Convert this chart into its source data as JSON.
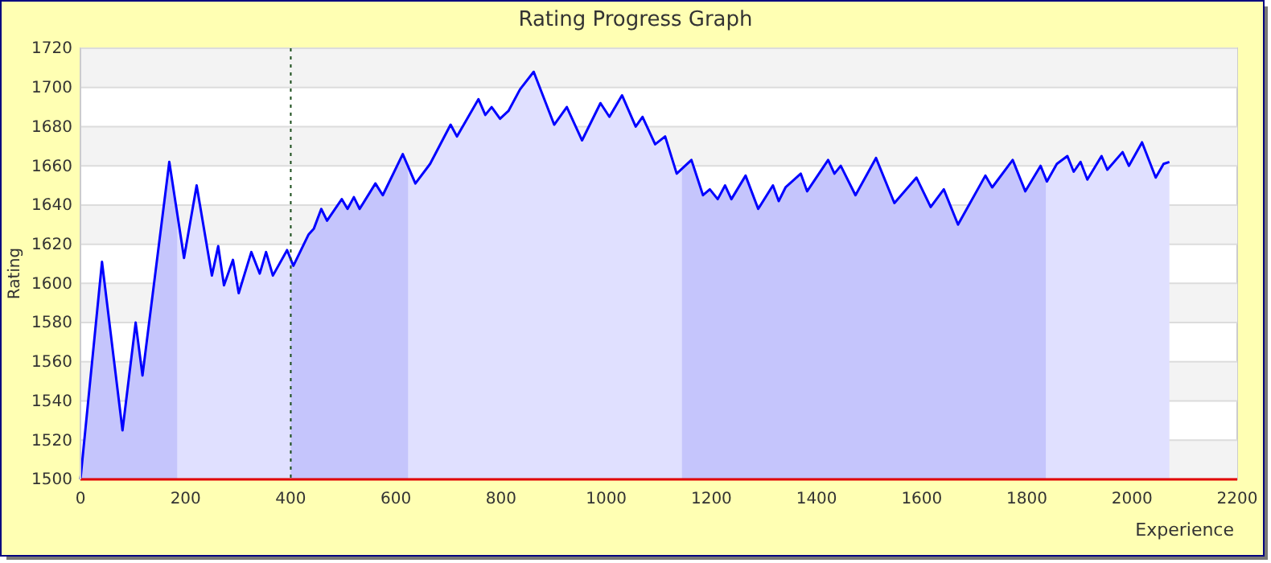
{
  "chart_data": {
    "type": "area",
    "title": "Rating Progress Graph",
    "xlabel": "Experience",
    "ylabel": "Rating",
    "x": [
      0,
      41,
      80,
      105,
      118,
      169,
      197,
      221,
      250,
      262,
      273,
      290,
      301,
      325,
      341,
      353,
      366,
      393,
      405,
      434,
      444,
      458,
      469,
      497,
      508,
      520,
      531,
      561,
      575,
      613,
      637,
      665,
      704,
      716,
      757,
      770,
      782,
      798,
      814,
      836,
      862,
      901,
      925,
      954,
      989,
      1006,
      1030,
      1056,
      1069,
      1093,
      1112,
      1134,
      1162,
      1184,
      1197,
      1212,
      1226,
      1238,
      1265,
      1289,
      1317,
      1328,
      1341,
      1370,
      1382,
      1422,
      1434,
      1446,
      1474,
      1513,
      1548,
      1590,
      1617,
      1642,
      1669,
      1721,
      1734,
      1773,
      1797,
      1826,
      1838,
      1857,
      1877,
      1889,
      1902,
      1915,
      1942,
      1953,
      1982,
      1994,
      2019,
      2045,
      2060,
      2071
    ],
    "series": [
      {
        "color": "#0000ff",
        "values": [
          1500,
          1611,
          1525,
          1580,
          1553,
          1662,
          1613,
          1650,
          1604,
          1619,
          1599,
          1612,
          1595,
          1616,
          1605,
          1616,
          1604,
          1617,
          1609,
          1625,
          1628,
          1638,
          1632,
          1643,
          1638,
          1644,
          1638,
          1651,
          1645,
          1666,
          1651,
          1661,
          1681,
          1675,
          1694,
          1686,
          1690,
          1684,
          1688,
          1699,
          1708,
          1681,
          1690,
          1673,
          1692,
          1685,
          1696,
          1680,
          1685,
          1671,
          1675,
          1656,
          1663,
          1645,
          1648,
          1643,
          1650,
          1643,
          1655,
          1638,
          1650,
          1642,
          1649,
          1656,
          1647,
          1663,
          1656,
          1660,
          1645,
          1664,
          1641,
          1654,
          1639,
          1648,
          1630,
          1655,
          1649,
          1663,
          1647,
          1660,
          1652,
          1661,
          1665,
          1657,
          1662,
          1653,
          1665,
          1658,
          1667,
          1660,
          1672,
          1654,
          1661,
          1662
        ]
      }
    ],
    "xlim": [
      0,
      2200
    ],
    "xticks": [
      0,
      200,
      400,
      600,
      800,
      1000,
      1200,
      1400,
      1600,
      1800,
      2000,
      2200
    ],
    "ylim": [
      1500,
      1720
    ],
    "yticks": [
      1500,
      1520,
      1540,
      1560,
      1580,
      1600,
      1620,
      1640,
      1660,
      1680,
      1700,
      1720
    ],
    "grid": "y",
    "ref_lines": [
      {
        "axis": "x",
        "value": 400,
        "label": null,
        "color": "#1a4d1a",
        "line_style": "dotted"
      }
    ],
    "bands": [
      {
        "axis": "x",
        "from": 0,
        "to": 184,
        "label": null,
        "color": "#cdcdfa"
      },
      {
        "axis": "x",
        "from": 400,
        "to": 623,
        "label": null,
        "color": "#cdcdfa"
      },
      {
        "axis": "x",
        "from": 1144,
        "to": 1836,
        "label": null,
        "color": "#cdcdfa"
      }
    ]
  }
}
